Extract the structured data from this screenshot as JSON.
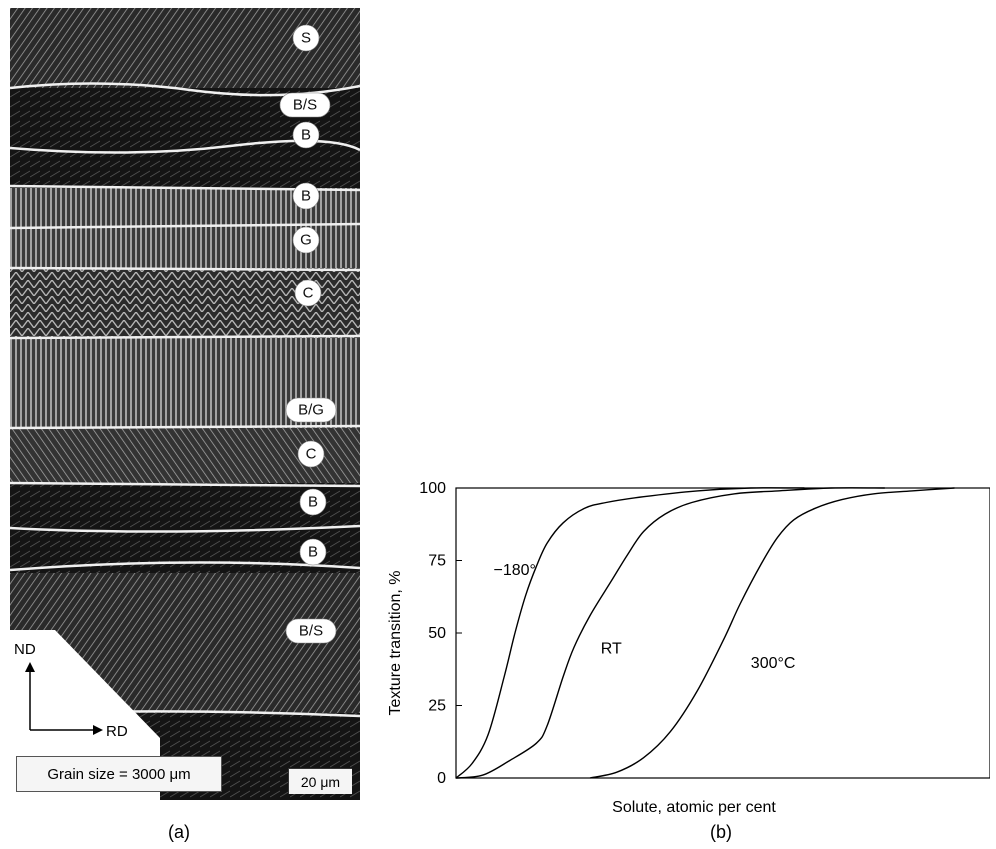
{
  "panel_a": {
    "caption": "(a)",
    "band_labels": [
      "S",
      "B/S",
      "B",
      "B",
      "G",
      "C",
      "B/G",
      "C",
      "B",
      "B",
      "B/S"
    ],
    "axes": {
      "vertical": "ND",
      "horizontal": "RD"
    },
    "grain_size_text": "Grain size = 3000 μm",
    "scale_bar_text": "20 μm"
  },
  "panel_b": {
    "caption": "(b)"
  },
  "chart_data": {
    "type": "line",
    "title": "",
    "xlabel": "Solute, atomic per cent",
    "ylabel": "Texture transition, %",
    "xlim": [
      0,
      100
    ],
    "ylim": [
      0,
      100
    ],
    "yticks": [
      "0",
      "25",
      "50",
      "75",
      "100"
    ],
    "x_tick_labels_shown": false,
    "grid": false,
    "series": [
      {
        "name": "−180°",
        "x": [
          0,
          3,
          6,
          9,
          11,
          13,
          15,
          17,
          20,
          24,
          28,
          35,
          45,
          55,
          65
        ],
        "y": [
          0,
          5,
          15,
          35,
          50,
          63,
          73,
          81,
          88,
          93,
          95,
          97,
          99,
          100,
          100
        ]
      },
      {
        "name": "RT",
        "x": [
          0,
          5,
          10,
          15,
          17,
          20,
          22,
          25,
          29,
          32,
          35,
          39,
          44,
          52,
          60,
          70,
          80
        ],
        "y": [
          0,
          1,
          6,
          12,
          18,
          35,
          45,
          56,
          68,
          77,
          85,
          91,
          95,
          98,
          99,
          100,
          100
        ]
      },
      {
        "name": "300°C",
        "x": [
          25,
          30,
          35,
          40,
          45,
          50,
          53,
          57,
          60,
          63,
          67,
          72,
          78,
          85,
          93
        ],
        "y": [
          0,
          2,
          7,
          16,
          30,
          48,
          60,
          74,
          83,
          89,
          93,
          96,
          98,
          99,
          100
        ]
      }
    ]
  }
}
